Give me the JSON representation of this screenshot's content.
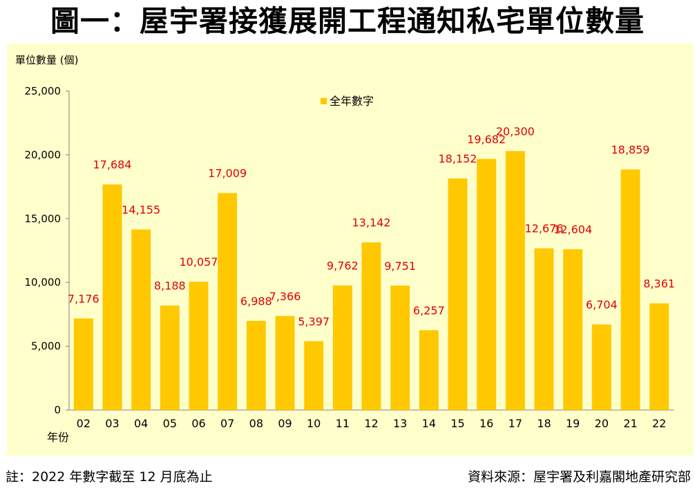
{
  "title": "圖一：屋宇署接獲展開工程通知私宅單位數量",
  "footer": {
    "note": "註：2022 年數字截至 12 月底為止",
    "source": "資料來源：屋宇署及利嘉閣地產研究部"
  },
  "colors": {
    "bar": "#ffc800",
    "label": "#e00000",
    "background": "#ffffcc"
  },
  "chart_data": {
    "type": "bar",
    "ylabel": "單位數量 (個)",
    "xlabel": "年份",
    "legend": "全年數字",
    "legend_position": "top-center",
    "ylim": [
      0,
      25000
    ],
    "yticks": [
      0,
      5000,
      10000,
      15000,
      20000,
      25000
    ],
    "ytick_labels": [
      "0",
      "5,000",
      "10,000",
      "15,000",
      "20,000",
      "25,000"
    ],
    "categories": [
      "02",
      "03",
      "04",
      "05",
      "06",
      "07",
      "08",
      "09",
      "10",
      "11",
      "12",
      "13",
      "14",
      "15",
      "16",
      "17",
      "18",
      "19",
      "20",
      "21",
      "22"
    ],
    "values": [
      7176,
      17684,
      14155,
      8188,
      10057,
      17009,
      6988,
      7366,
      5397,
      9762,
      13142,
      9751,
      6257,
      18152,
      19682,
      20300,
      12676,
      12604,
      6704,
      18859,
      8361
    ],
    "data_labels": [
      "7,176",
      "17,684",
      "14,155",
      "8,188",
      "10,057",
      "17,009",
      "6,988",
      "7,366",
      "5,397",
      "9,762",
      "13,142",
      "9,751",
      "6,257",
      "18,152",
      "19,682",
      "20,300",
      "12,676",
      "12,604",
      "6,704",
      "18,859",
      "8,361"
    ]
  }
}
